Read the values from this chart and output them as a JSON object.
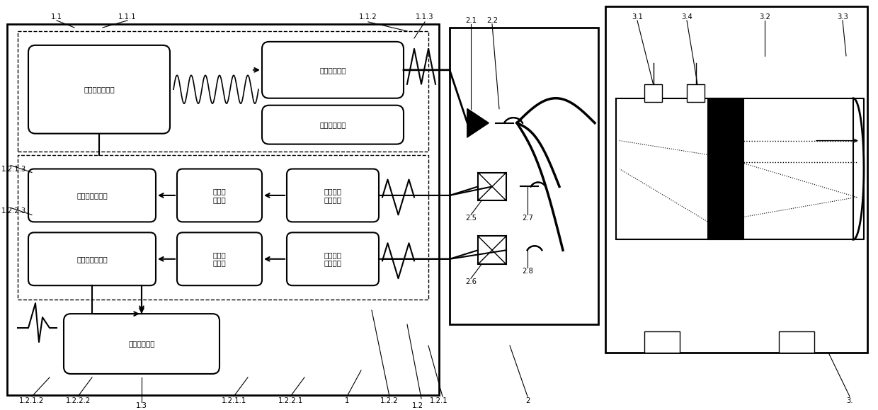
{
  "bg_color": "#ffffff",
  "border_color": "#000000",
  "box_color": "#ffffff",
  "text_color": "#000000",
  "fig_width": 12.4,
  "fig_height": 5.79,
  "labels": {
    "1_1": "1.1",
    "1_1_1": "1.1.1",
    "1_1_2": "1.1.2",
    "1_1_3": "1.1.3",
    "1_2": "1.2",
    "1_2_1": "1.2.1",
    "1_2_1_1": "1.2.1.1",
    "1_2_1_2": "1.2.1.2",
    "1_2_1_3": "1.2.1.3",
    "1_2_2": "1.2.2",
    "1_2_2_1": "1.2.2.1",
    "1_2_2_2": "1.2.2.2",
    "1_2_2_3": "1.2.2.3",
    "1_3": "1.3",
    "1": "1",
    "2": "2",
    "2_1": "2.1",
    "2_2": "2.2",
    "2_5": "2.5",
    "2_6": "2.6",
    "2_7": "2.7",
    "2_8": "2.8",
    "3": "3.",
    "3_1": "3.1",
    "3_2": "3.2",
    "3_3": "3.3",
    "3_4": "3.4"
  },
  "boxes": {
    "modwave": "调制波形发生器",
    "laserdrv": "激光驱动电路",
    "tempctrl": "数字温控模块",
    "lock1": "第一锁相放大器",
    "lock2": "第二锁相放大器",
    "filter1": "第一滤\n波电路",
    "filter2": "第二滤\n波电路",
    "preamp1": "第一前置\n放大电路",
    "preamp2": "第二前置\n放大电路",
    "dataproc": "数据处理单元"
  }
}
